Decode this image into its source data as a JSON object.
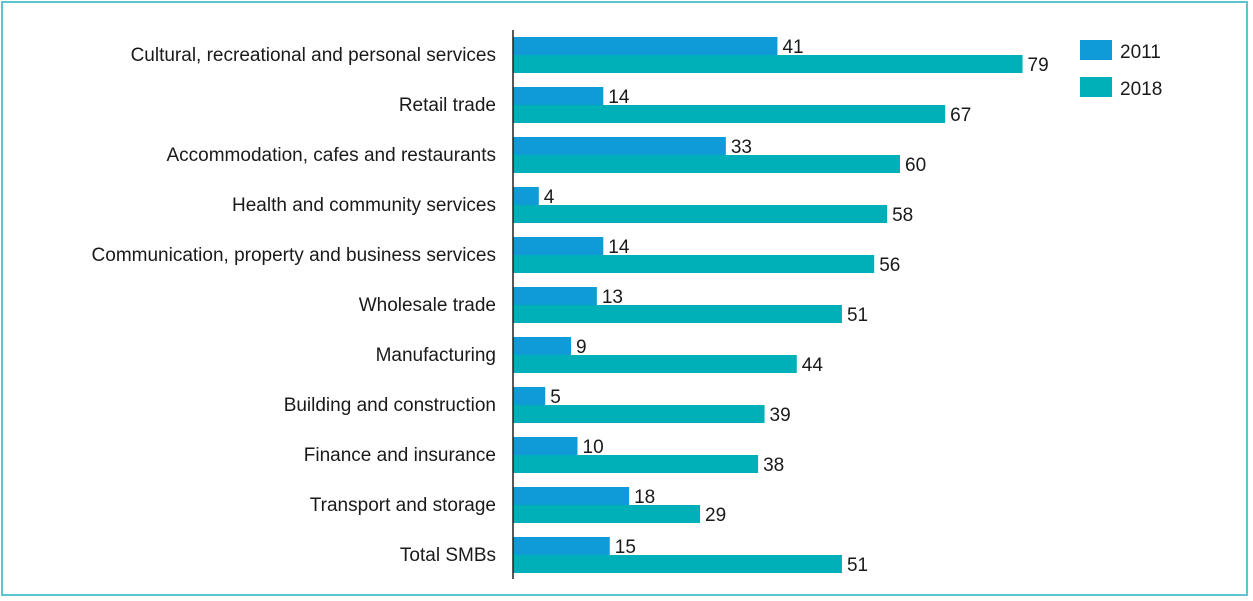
{
  "chart_data": {
    "type": "bar",
    "orientation": "horizontal",
    "categories": [
      "Cultural, recreational and personal services",
      "Retail trade",
      "Accommodation, cafes and restaurants",
      "Health and community services",
      "Communication, property and business services",
      "Wholesale trade",
      "Manufacturing",
      "Building and construction",
      "Finance and insurance",
      "Transport and storage",
      "Total SMBs"
    ],
    "series": [
      {
        "name": "2011",
        "color": "#0f9bd7",
        "values": [
          41,
          14,
          33,
          4,
          14,
          13,
          9,
          5,
          10,
          18,
          15
        ]
      },
      {
        "name": "2018",
        "color": "#00b0b9",
        "values": [
          79,
          67,
          60,
          58,
          56,
          51,
          44,
          39,
          38,
          29,
          51
        ]
      }
    ],
    "xlim": [
      0,
      100
    ],
    "grid": false,
    "legend_position": "top-right",
    "data_labels": true
  }
}
